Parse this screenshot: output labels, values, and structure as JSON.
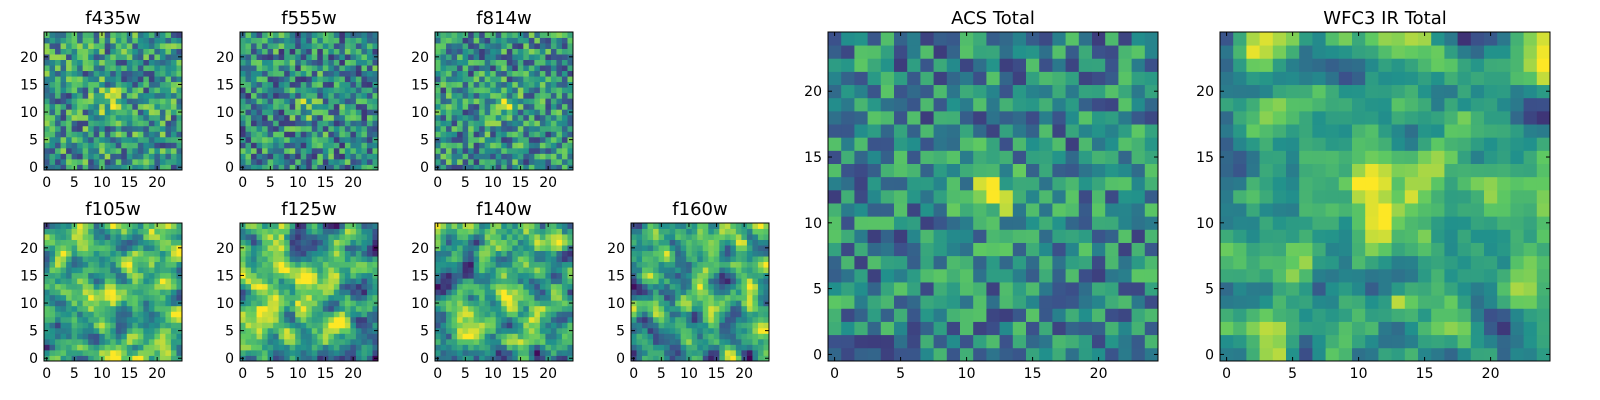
{
  "figure": {
    "colormap": "viridis",
    "colormap_stops": [
      "#440154",
      "#3b528b",
      "#21918c",
      "#5ec962",
      "#fde725"
    ],
    "background": "#ffffff"
  },
  "chart_data": [
    {
      "type": "heatmap",
      "title": "f435w",
      "grid_size": 25,
      "xticks": [
        "0",
        "5",
        "10",
        "15",
        "20"
      ],
      "yticks": [
        "0",
        "5",
        "10",
        "15",
        "20"
      ],
      "xlim": [
        0,
        24
      ],
      "ylim": [
        0,
        24
      ],
      "seed": 11,
      "noise": 0.33,
      "smooth": 0,
      "blob": {
        "x": 12,
        "y": 12,
        "amp": 0.25,
        "sigma": 2.0
      },
      "base": 0.52
    },
    {
      "type": "heatmap",
      "title": "f555w",
      "grid_size": 25,
      "xticks": [
        "0",
        "5",
        "10",
        "15",
        "20"
      ],
      "yticks": [
        "0",
        "5",
        "10",
        "15",
        "20"
      ],
      "xlim": [
        0,
        24
      ],
      "ylim": [
        0,
        24
      ],
      "seed": 23,
      "noise": 0.33,
      "smooth": 0,
      "blob": {
        "x": 12,
        "y": 11,
        "amp": 0.28,
        "sigma": 1.6
      },
      "base": 0.48
    },
    {
      "type": "heatmap",
      "title": "f814w",
      "grid_size": 25,
      "xticks": [
        "0",
        "5",
        "10",
        "15",
        "20"
      ],
      "yticks": [
        "0",
        "5",
        "10",
        "15",
        "20"
      ],
      "xlim": [
        0,
        24
      ],
      "ylim": [
        0,
        24
      ],
      "seed": 37,
      "noise": 0.32,
      "smooth": 0,
      "blob": {
        "x": 12,
        "y": 11,
        "amp": 0.3,
        "sigma": 1.8
      },
      "base": 0.5
    },
    {
      "type": "heatmap",
      "title": "f105w",
      "grid_size": 25,
      "xticks": [
        "0",
        "5",
        "10",
        "15",
        "20"
      ],
      "yticks": [
        "0",
        "5",
        "10",
        "15",
        "20"
      ],
      "xlim": [
        0,
        24
      ],
      "ylim": [
        0,
        24
      ],
      "seed": 41,
      "noise": 0.42,
      "smooth": 1,
      "blob": {
        "x": 12,
        "y": 12,
        "amp": 0.22,
        "sigma": 2.5
      },
      "base": 0.62
    },
    {
      "type": "heatmap",
      "title": "f125w",
      "grid_size": 25,
      "xticks": [
        "0",
        "5",
        "10",
        "15",
        "20"
      ],
      "yticks": [
        "0",
        "5",
        "10",
        "15",
        "20"
      ],
      "xlim": [
        0,
        24
      ],
      "ylim": [
        0,
        24
      ],
      "seed": 53,
      "noise": 0.42,
      "smooth": 1,
      "blob": {
        "x": 12,
        "y": 12,
        "amp": 0.2,
        "sigma": 2.5
      },
      "base": 0.62
    },
    {
      "type": "heatmap",
      "title": "f140w",
      "grid_size": 25,
      "xticks": [
        "0",
        "5",
        "10",
        "15",
        "20"
      ],
      "yticks": [
        "0",
        "5",
        "10",
        "15",
        "20"
      ],
      "xlim": [
        0,
        24
      ],
      "ylim": [
        0,
        24
      ],
      "seed": 67,
      "noise": 0.42,
      "smooth": 1,
      "blob": {
        "x": 12,
        "y": 12,
        "amp": 0.15,
        "sigma": 2.5
      },
      "base": 0.6
    },
    {
      "type": "heatmap",
      "title": "f160w",
      "grid_size": 25,
      "xticks": [
        "0",
        "5",
        "10",
        "15",
        "20"
      ],
      "yticks": [
        "0",
        "5",
        "10",
        "15",
        "20"
      ],
      "xlim": [
        0,
        24
      ],
      "ylim": [
        0,
        24
      ],
      "seed": 79,
      "noise": 0.42,
      "smooth": 1,
      "blob": {
        "x": 12,
        "y": 12,
        "amp": 0.22,
        "sigma": 2.2
      },
      "base": 0.58
    },
    {
      "type": "heatmap",
      "title": "ACS Total",
      "grid_size": 25,
      "xticks": [
        "0",
        "5",
        "10",
        "15",
        "20"
      ],
      "yticks": [
        "0",
        "5",
        "10",
        "15",
        "20"
      ],
      "xlim": [
        0,
        24
      ],
      "ylim": [
        0,
        24
      ],
      "seed": 97,
      "noise": 0.28,
      "smooth": 0,
      "blob": {
        "x": 12,
        "y": 12,
        "amp": 0.45,
        "sigma": 1.5
      },
      "base": 0.46
    },
    {
      "type": "heatmap",
      "title": "WFC3 IR Total",
      "grid_size": 25,
      "xticks": [
        "0",
        "5",
        "10",
        "15",
        "20"
      ],
      "yticks": [
        "0",
        "5",
        "10",
        "15",
        "20"
      ],
      "xlim": [
        0,
        24
      ],
      "ylim": [
        0,
        24
      ],
      "seed": 113,
      "noise": 0.34,
      "smooth": 1,
      "blob": {
        "x": 12,
        "y": 12,
        "amp": 0.35,
        "sigma": 2.0
      },
      "base": 0.58
    }
  ]
}
